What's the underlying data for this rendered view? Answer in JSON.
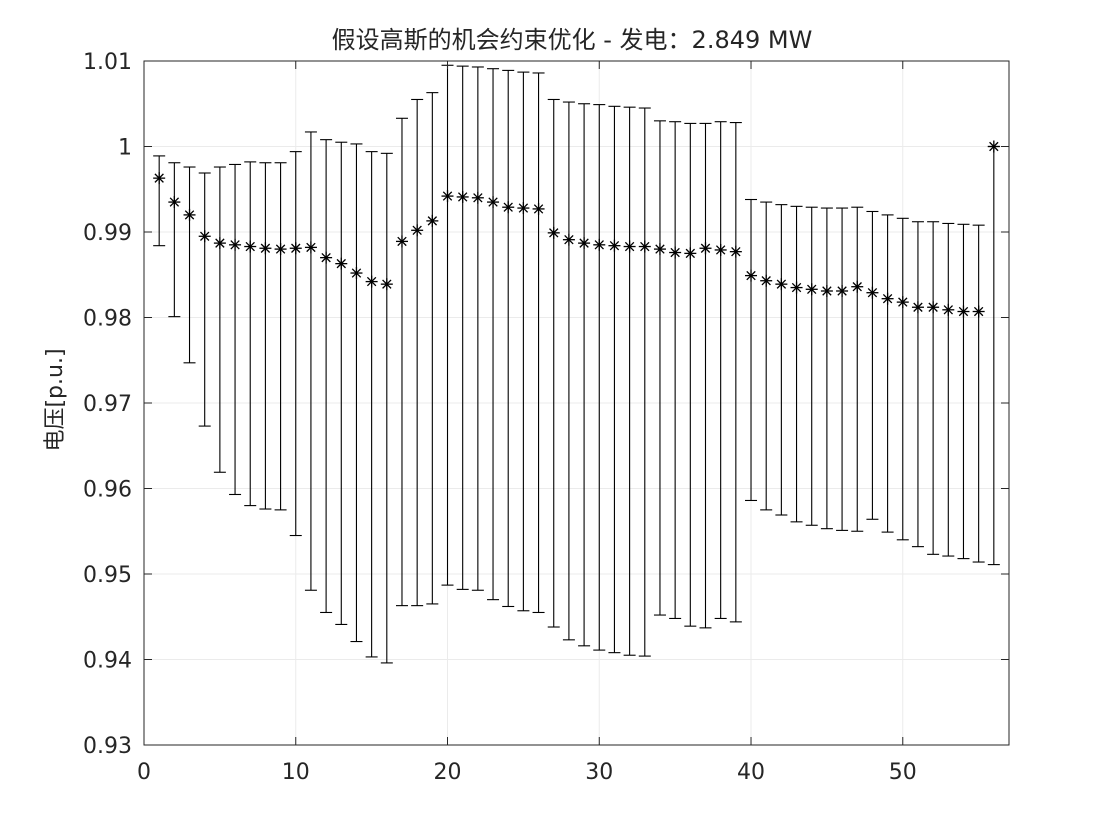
{
  "chart_data": {
    "type": "scatter",
    "title": "假设高斯的机会约束优化 - 发电：2.849 MW",
    "xlabel": "",
    "ylabel": "电压[p.u.]",
    "xlim": [
      0,
      57
    ],
    "ylim": [
      0.93,
      1.01
    ],
    "xticks": [
      0,
      10,
      20,
      30,
      40,
      50
    ],
    "xtick_labels": [
      "0",
      "10",
      "20",
      "30",
      "40",
      "50"
    ],
    "yticks": [
      0.93,
      0.94,
      0.95,
      0.96,
      0.97,
      0.98,
      0.99,
      1.0,
      1.01
    ],
    "ytick_labels": [
      "0.93",
      "0.94",
      "0.95",
      "0.96",
      "0.97",
      "0.98",
      "0.99",
      "1",
      "1.01"
    ],
    "grid": true,
    "marker": "asterisk",
    "color": "#000000",
    "series": [
      {
        "x": [
          1,
          2,
          3,
          4,
          5,
          6,
          7,
          8,
          9,
          10,
          11,
          12,
          13,
          14,
          15,
          16,
          17,
          18,
          19,
          20,
          21,
          22,
          23,
          24,
          25,
          26,
          27,
          28,
          29,
          30,
          31,
          32,
          33,
          34,
          35,
          36,
          37,
          38,
          39,
          40,
          41,
          42,
          43,
          44,
          45,
          46,
          47,
          48,
          49,
          50,
          51,
          52,
          53,
          54,
          55,
          56
        ],
        "y": [
          0.9963,
          0.9935,
          0.992,
          0.9895,
          0.9887,
          0.9885,
          0.9883,
          0.9881,
          0.988,
          0.9881,
          0.9882,
          0.987,
          0.9863,
          0.9852,
          0.9842,
          0.9839,
          0.9889,
          0.9902,
          0.9913,
          0.9942,
          0.9941,
          0.994,
          0.9935,
          0.9929,
          0.9928,
          0.9927,
          0.9899,
          0.9891,
          0.9887,
          0.9885,
          0.9884,
          0.9883,
          0.9883,
          0.988,
          0.9876,
          0.9875,
          0.9881,
          0.9879,
          0.9877,
          0.9849,
          0.9843,
          0.9839,
          0.9835,
          0.9833,
          0.9831,
          0.9831,
          0.9836,
          0.9829,
          0.9822,
          0.9818,
          0.9812,
          0.9812,
          0.9809,
          0.9807,
          0.9807,
          1.0
        ],
        "upper": [
          0.9989,
          0.9981,
          0.9976,
          0.9969,
          0.9976,
          0.9979,
          0.9982,
          0.9981,
          0.9981,
          0.9994,
          1.0017,
          1.0008,
          1.0005,
          1.0003,
          0.9994,
          0.9992,
          1.0033,
          1.0055,
          1.0063,
          1.0095,
          1.0094,
          1.0093,
          1.0091,
          1.0089,
          1.0087,
          1.0086,
          1.0055,
          1.0052,
          1.005,
          1.0049,
          1.0047,
          1.0046,
          1.0045,
          1.003,
          1.0029,
          1.0027,
          1.0027,
          1.0029,
          1.0028,
          0.9938,
          0.9935,
          0.9932,
          0.993,
          0.9929,
          0.9928,
          0.9928,
          0.9929,
          0.9924,
          0.992,
          0.9916,
          0.9912,
          0.9912,
          0.991,
          0.9909,
          0.9908,
          1.0
        ],
        "lower": [
          0.9884,
          0.9801,
          0.9747,
          0.9673,
          0.9619,
          0.9593,
          0.958,
          0.9576,
          0.9575,
          0.9545,
          0.9481,
          0.9455,
          0.9441,
          0.9421,
          0.9403,
          0.9396,
          0.9463,
          0.9463,
          0.9465,
          0.9487,
          0.9482,
          0.9481,
          0.947,
          0.9462,
          0.9457,
          0.9455,
          0.9438,
          0.9423,
          0.9416,
          0.9411,
          0.9408,
          0.9405,
          0.9404,
          0.9452,
          0.9448,
          0.9439,
          0.9437,
          0.9448,
          0.9444,
          0.9586,
          0.9575,
          0.9569,
          0.9561,
          0.9557,
          0.9553,
          0.9551,
          0.955,
          0.9564,
          0.9549,
          0.954,
          0.9532,
          0.9523,
          0.9521,
          0.9518,
          0.9514,
          0.9511
        ]
      }
    ]
  }
}
